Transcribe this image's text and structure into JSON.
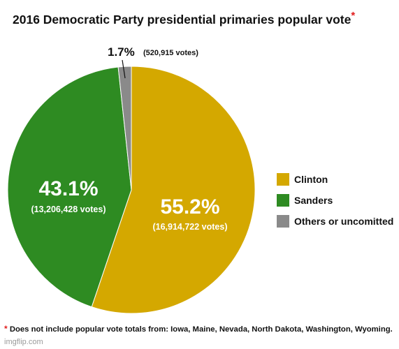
{
  "title": "2016 Democratic Party presidential primaries popular vote",
  "title_marker": "*",
  "footnote": {
    "marker": "*",
    "text": "Does not include popular vote totals from: Iowa, Maine, Nevada, North Dakota, Washington, Wyoming."
  },
  "watermark": "imgflip.com",
  "chart_data": {
    "type": "pie",
    "slices": [
      {
        "name": "Clinton",
        "percent": 55.2,
        "percent_label": "55.2%",
        "votes_label": "(16,914,722 votes)",
        "color": "#d4a800"
      },
      {
        "name": "Sanders",
        "percent": 43.1,
        "percent_label": "43.1%",
        "votes_label": "(13,206,428 votes)",
        "color": "#2e8b22"
      },
      {
        "name": "Others or uncomitted",
        "percent": 1.7,
        "percent_label": "1.7%",
        "votes_label": "(520,915 votes)",
        "color": "#8a8a8a"
      }
    ],
    "legend_position": "right"
  }
}
